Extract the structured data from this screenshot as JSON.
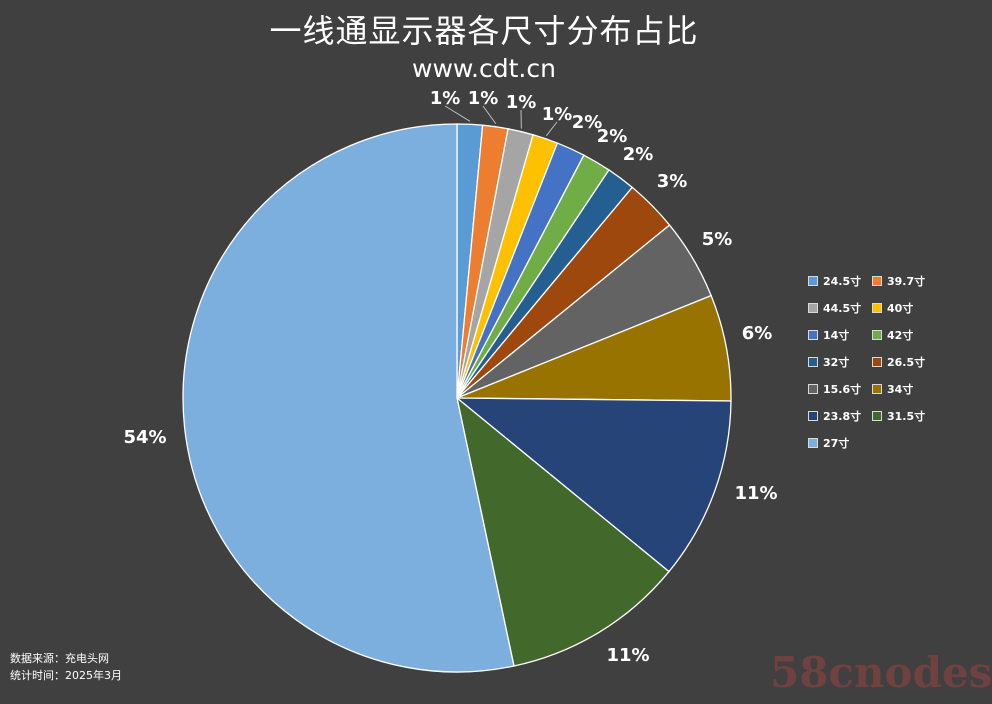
{
  "title": "一线通显示器各尺寸分布占比",
  "subtitle": "www.cdt.cn",
  "source": {
    "line1": "数据来源：充电头网",
    "line2": "统计时间：2025年3月"
  },
  "watermark": "58cnodes",
  "chart_data": {
    "type": "pie",
    "title": "一线通显示器各尺寸分布占比",
    "legend_position": "right",
    "start_angle": "12 o'clock, clockwise",
    "slices": [
      {
        "name": "24.5寸",
        "value": 1.5,
        "label": "1%",
        "color": "#5b9bd5"
      },
      {
        "name": "39.7寸",
        "value": 1.5,
        "label": "1%",
        "color": "#ed7d31"
      },
      {
        "name": "44.5寸",
        "value": 1.5,
        "label": "1%",
        "color": "#a5a5a5"
      },
      {
        "name": "40寸",
        "value": 1.5,
        "label": "1%",
        "color": "#ffc000"
      },
      {
        "name": "14寸",
        "value": 1.7,
        "label": "2%",
        "color": "#4472c4"
      },
      {
        "name": "42寸",
        "value": 1.7,
        "label": "2%",
        "color": "#70ad47"
      },
      {
        "name": "32寸",
        "value": 1.7,
        "label": "2%",
        "color": "#255e91"
      },
      {
        "name": "26.5寸",
        "value": 3.1,
        "label": "3%",
        "color": "#9e480e"
      },
      {
        "name": "15.6寸",
        "value": 4.8,
        "label": "5%",
        "color": "#636363"
      },
      {
        "name": "34寸",
        "value": 6.3,
        "label": "6%",
        "color": "#997300"
      },
      {
        "name": "23.8寸",
        "value": 10.8,
        "label": "11%",
        "color": "#264478"
      },
      {
        "name": "31.5寸",
        "value": 10.8,
        "label": "11%",
        "color": "#43682b"
      },
      {
        "name": "27寸",
        "value": 53.6,
        "label": "54%",
        "color": "#7cafdd"
      }
    ]
  }
}
